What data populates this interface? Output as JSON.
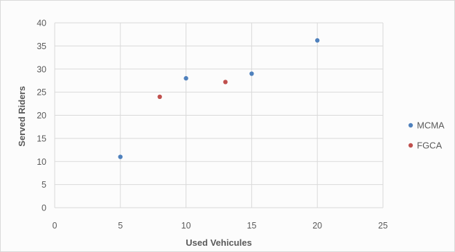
{
  "chart_data": {
    "type": "scatter",
    "title": "",
    "xlabel": "Used Vehicules",
    "ylabel": "Served Riders",
    "xlim": [
      0,
      25
    ],
    "ylim": [
      0,
      40
    ],
    "xticks": [
      0,
      5,
      10,
      15,
      20,
      25
    ],
    "yticks": [
      0,
      5,
      10,
      15,
      20,
      25,
      30,
      35,
      40
    ],
    "grid": true,
    "legend_position": "right",
    "series": [
      {
        "name": "MCMA",
        "color": "#4f81bd",
        "points": [
          {
            "x": 5,
            "y": 11
          },
          {
            "x": 10,
            "y": 28
          },
          {
            "x": 15,
            "y": 29
          },
          {
            "x": 20,
            "y": 36.2
          }
        ]
      },
      {
        "name": "FGCA",
        "color": "#c0504d",
        "points": [
          {
            "x": 8,
            "y": 24
          },
          {
            "x": 13,
            "y": 27.2
          }
        ]
      }
    ]
  }
}
